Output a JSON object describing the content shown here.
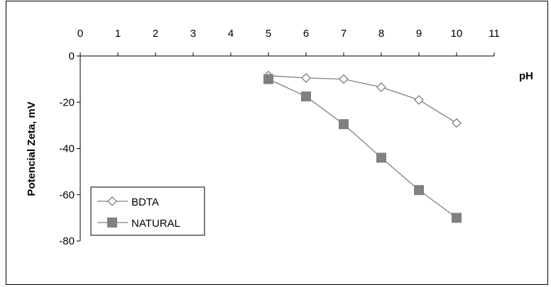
{
  "chart_data": {
    "type": "line",
    "title": "",
    "xlabel": "pH",
    "ylabel": "Potencial Zeta, mV",
    "x_axis_position": "top",
    "xlim": [
      0,
      11
    ],
    "ylim": [
      -80,
      0
    ],
    "x_ticks": [
      0,
      1,
      2,
      3,
      4,
      5,
      6,
      7,
      8,
      9,
      10,
      11
    ],
    "y_ticks": [
      0,
      -20,
      -40,
      -60,
      -80
    ],
    "grid": false,
    "legend_position": "bottom-left",
    "series": [
      {
        "name": "BDTA",
        "marker": "open-diamond",
        "color": "#808080",
        "x": [
          5,
          6,
          7,
          8,
          9,
          10
        ],
        "y": [
          -8.5,
          -9.5,
          -10,
          -13.5,
          -19,
          -29
        ]
      },
      {
        "name": "NATURAL",
        "marker": "filled-square",
        "color": "#808080",
        "x": [
          5,
          6,
          7,
          8,
          9,
          10
        ],
        "y": [
          -10,
          -17.5,
          -29.5,
          -44,
          -58,
          -70
        ]
      }
    ]
  }
}
